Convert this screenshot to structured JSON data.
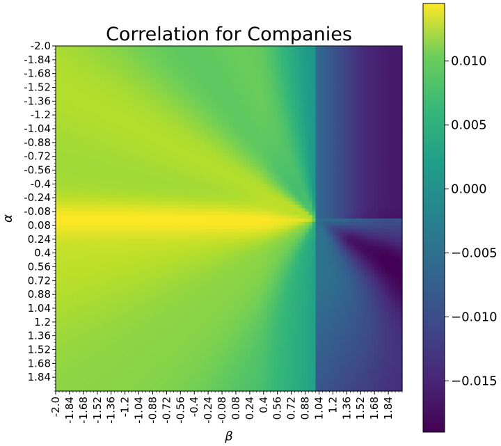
{
  "chart_data": {
    "type": "heatmap",
    "title": "Correlation for Companies",
    "xlabel": "β",
    "ylabel": "α",
    "x_range": [
      -2.0,
      2.0
    ],
    "y_range": [
      -2.0,
      2.0
    ],
    "y_axis_direction": "top-to-bottom (-2.0 at top)",
    "x_tick_labels": [
      "-2.0",
      "-1.84",
      "-1.68",
      "-1.52",
      "-1.36",
      "-1.2",
      "-1.04",
      "-0.88",
      "-0.72",
      "-0.56",
      "-0.4",
      "-0.24",
      "-0.08",
      "0.08",
      "0.24",
      "0.4",
      "0.56",
      "0.72",
      "0.88",
      "1.04",
      "1.2",
      "1.36",
      "1.52",
      "1.68",
      "1.84"
    ],
    "y_tick_labels": [
      "-2.0",
      "-1.84",
      "-1.68",
      "-1.52",
      "-1.36",
      "-1.2",
      "-1.04",
      "-0.88",
      "-0.72",
      "-0.56",
      "-0.4",
      "-0.24",
      "-0.08",
      "0.08",
      "0.24",
      "0.4",
      "0.56",
      "0.72",
      "0.88",
      "1.04",
      "1.2",
      "1.36",
      "1.52",
      "1.68",
      "1.84"
    ],
    "colormap": "viridis",
    "colorbar_range": [
      -0.019,
      0.0145
    ],
    "colorbar_ticks": [
      0.01,
      0.005,
      0.0,
      -0.005,
      -0.01,
      -0.015
    ],
    "colorbar_tick_labels": [
      "0.010",
      "0.005",
      "0.000",
      "−0.005",
      "−0.010",
      "−0.015"
    ],
    "colorbar_placement": "right",
    "grid": false,
    "pattern": "Highest correlation (~0.0145) for α near 0 and β from -2.0 to 1.0, fanning out from a singular point at β≈1.0, α≈0; lowest values (~-0.019) for β > 1.0 near α≈0.2-0.7 and at α < -0.5, β > 1.6"
  }
}
